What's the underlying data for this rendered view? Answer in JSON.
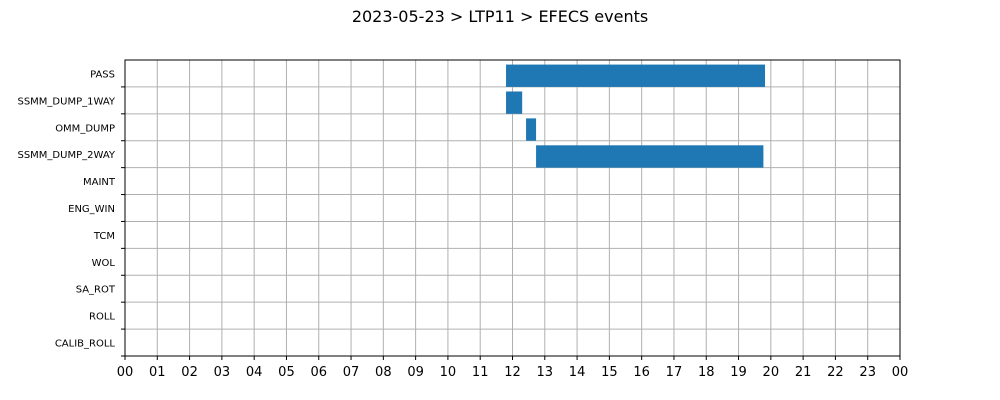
{
  "chart_data": {
    "type": "bar",
    "orientation": "horizontal",
    "title": "2023-05-23 > LTP11 > EFECS events",
    "xlabel": "",
    "ylabel": "",
    "categories": [
      "PASS",
      "SSMM_DUMP_1WAY",
      "OMM_DUMP",
      "SSMM_DUMP_2WAY",
      "MAINT",
      "ENG_WIN",
      "TCM",
      "WOL",
      "SA_ROT",
      "ROLL",
      "CALIB_ROLL"
    ],
    "xlim": [
      0,
      24
    ],
    "xtick_labels": [
      "00",
      "01",
      "02",
      "03",
      "04",
      "05",
      "06",
      "07",
      "08",
      "09",
      "10",
      "11",
      "12",
      "13",
      "14",
      "15",
      "16",
      "17",
      "18",
      "19",
      "20",
      "21",
      "22",
      "23",
      "00"
    ],
    "grid": true,
    "bar_color": "#1f77b4",
    "events": [
      {
        "category": "PASS",
        "start": 11.8,
        "end": 19.82
      },
      {
        "category": "SSMM_DUMP_1WAY",
        "start": 11.8,
        "end": 12.3
      },
      {
        "category": "OMM_DUMP",
        "start": 12.42,
        "end": 12.73
      },
      {
        "category": "SSMM_DUMP_2WAY",
        "start": 12.73,
        "end": 19.77
      }
    ]
  }
}
